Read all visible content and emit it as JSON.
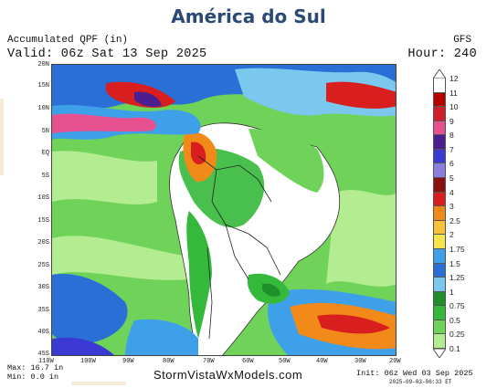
{
  "page_title": "América do Sul",
  "header": {
    "product": "Accumulated QPF (in)",
    "valid": "Valid: 06z Sat 13 Sep 2025",
    "model": "GFS",
    "hour": "Hour: 240"
  },
  "map": {
    "region": "South America",
    "lat_labels": [
      "20N",
      "15N",
      "10N",
      "5N",
      "EQ",
      "5S",
      "10S",
      "15S",
      "20S",
      "25S",
      "30S",
      "35S",
      "40S",
      "45S"
    ],
    "lon_labels": [
      "110W",
      "100W",
      "90W",
      "80W",
      "70W",
      "60W",
      "50W",
      "40W",
      "30W",
      "20W"
    ]
  },
  "legend": {
    "labels": [
      "12",
      "11",
      "10",
      "9",
      "8",
      "7",
      "6",
      "5",
      "4",
      "3",
      "2.5",
      "2",
      "1.75",
      "1.5",
      "1.25",
      "1",
      "0.75",
      "0.5",
      "0.25",
      "0.1"
    ],
    "colors": [
      "#ffffff",
      "#b40000",
      "#d21e2a",
      "#e7518f",
      "#4b1f8f",
      "#3a3ad2",
      "#8a7fdc",
      "#8b1010",
      "#d81e1e",
      "#f28a1a",
      "#f7c33a",
      "#f5e54a",
      "#3fa0ea",
      "#2a6fd6",
      "#7ac8ee",
      "#1f8f2a",
      "#35b93b",
      "#6fd35a",
      "#b4ec92"
    ]
  },
  "footer": {
    "max": "Max: 16.7 in",
    "min": "Min: 0.0 in",
    "brand": "StormVistaWxModels.com",
    "init": "Init: 06z Wed 03 Sep 2025",
    "generated": "2025-09-03-06:33 ET"
  }
}
